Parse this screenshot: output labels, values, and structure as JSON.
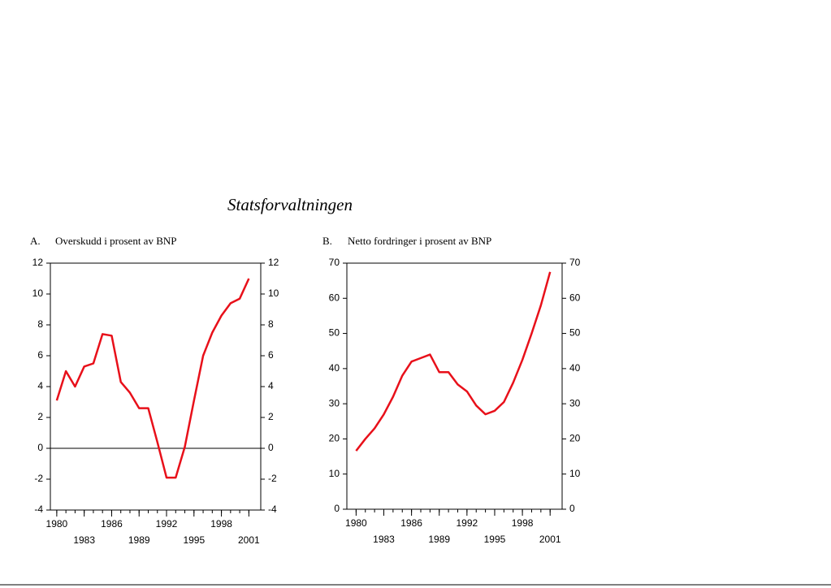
{
  "title": "Statsforvaltningen",
  "chart_data": [
    {
      "type": "line",
      "panel": "A.",
      "title": "Overskudd i prosent av BNP",
      "x": [
        1980,
        1981,
        1982,
        1983,
        1984,
        1985,
        1986,
        1987,
        1988,
        1989,
        1990,
        1991,
        1992,
        1993,
        1994,
        1995,
        1996,
        1997,
        1998,
        1999,
        2000,
        2001
      ],
      "series": [
        {
          "color": "#e8101a",
          "values": [
            3.1,
            5.0,
            4.0,
            5.3,
            5.5,
            7.4,
            7.3,
            4.3,
            3.6,
            2.6,
            2.6,
            0.4,
            -1.9,
            -1.9,
            0.1,
            3.1,
            6.0,
            7.5,
            8.6,
            9.4,
            9.7,
            11.0
          ]
        }
      ],
      "xlim": [
        1979.3,
        2002.3
      ],
      "xticks": [
        1980,
        1983,
        1986,
        1989,
        1992,
        1995,
        1998,
        2001
      ],
      "ylim": [
        -4,
        12
      ],
      "yticks": [
        -4,
        -2,
        0,
        2,
        4,
        6,
        8,
        10,
        12
      ],
      "zero_line": true
    },
    {
      "type": "line",
      "panel": "B.",
      "title": "Netto fordringer i prosent av BNP",
      "x": [
        1980,
        1981,
        1982,
        1983,
        1984,
        1985,
        1986,
        1987,
        1988,
        1989,
        1990,
        1991,
        1992,
        1993,
        1994,
        1995,
        1996,
        1997,
        1998,
        1999,
        2000,
        2001
      ],
      "series": [
        {
          "color": "#e8101a",
          "values": [
            16.6,
            20,
            23,
            27,
            32,
            38,
            42,
            43,
            44,
            39,
            39,
            35.5,
            33.5,
            29.5,
            27,
            28,
            30.5,
            36,
            42.5,
            50,
            58,
            67.5
          ]
        }
      ],
      "xlim": [
        1979.0,
        2002.3
      ],
      "xticks": [
        1980,
        1983,
        1986,
        1989,
        1992,
        1995,
        1998,
        2001
      ],
      "ylim": [
        0,
        70
      ],
      "yticks": [
        0,
        10,
        20,
        30,
        40,
        50,
        60,
        70
      ],
      "zero_line": false
    }
  ]
}
